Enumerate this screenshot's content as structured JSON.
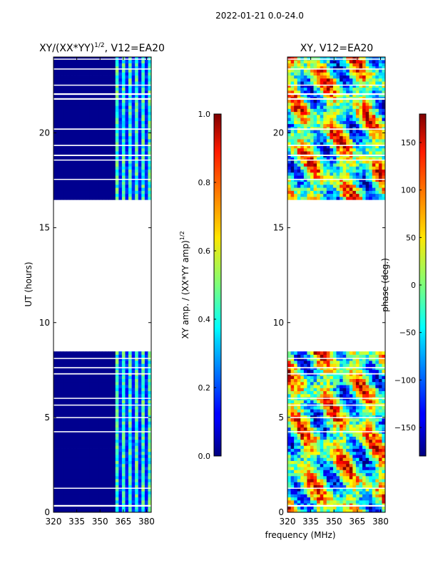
{
  "suptitle": "2022-01-21 0.0-24.0",
  "shared_xlabel": "frequency (MHz)",
  "chart_data": [
    {
      "type": "heatmap",
      "title_main": "XY/(XX*YY)",
      "title_sup": "1/2",
      "title_tail": ", V12=EA20",
      "ylabel": "UT (hours)",
      "xlim": [
        320,
        383
      ],
      "ylim": [
        0,
        24
      ],
      "xticks": [
        320,
        335,
        350,
        365,
        380
      ],
      "yticks": [
        0,
        5,
        10,
        15,
        20
      ],
      "quantity": "amplitude",
      "data_ranges_hours": [
        [
          0.0,
          8.5
        ],
        [
          16.5,
          24.0
        ]
      ],
      "bright_band_mhz": [
        360,
        383
      ],
      "colorbar": {
        "label_main": "XY amp. / (XX*YY amp)",
        "label_sup": "1/2",
        "range": [
          0.0,
          1.0
        ],
        "ticks": [
          "0.0",
          "0.2",
          "0.4",
          "0.6",
          "0.8",
          "1.0"
        ]
      }
    },
    {
      "type": "heatmap",
      "title_main": "XY, V12=EA20",
      "title_sup": "",
      "title_tail": "",
      "ylabel": "",
      "xlim": [
        320,
        383
      ],
      "ylim": [
        0,
        24
      ],
      "xticks": [
        320,
        335,
        350,
        365,
        380
      ],
      "yticks": [
        0,
        5,
        10,
        15,
        20
      ],
      "quantity": "phase",
      "data_ranges_hours": [
        [
          0.0,
          8.5
        ],
        [
          16.5,
          24.0
        ]
      ],
      "colorbar": {
        "label_main": "phase (deg.)",
        "label_sup": "",
        "range": [
          -180,
          180
        ],
        "ticks": [
          "150",
          "100",
          "50",
          "0",
          "−50",
          "−100",
          "−150"
        ]
      }
    }
  ]
}
